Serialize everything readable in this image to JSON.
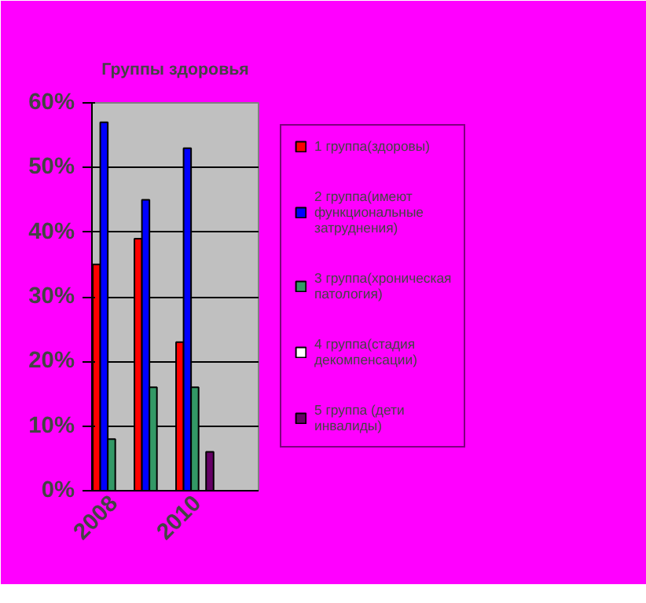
{
  "chart_data": {
    "type": "bar",
    "title": "Группы здоровья",
    "categories": [
      "2008",
      null,
      "2010",
      null
    ],
    "series": [
      {
        "name": "1 группа(здоровы)",
        "color": "#ff0000",
        "values": [
          35,
          39,
          23,
          null
        ]
      },
      {
        "name": "2 группа(имеют функциональные затруднения)",
        "color": "#0000ff",
        "values": [
          57,
          45,
          53,
          null
        ]
      },
      {
        "name": "3 группа(хроническая патология)",
        "color": "#339966",
        "values": [
          8,
          16,
          16,
          null
        ]
      },
      {
        "name": "4 группа(стадия декомпенсации)",
        "color": "#ffffff",
        "values": [
          null,
          null,
          null,
          null
        ]
      },
      {
        "name": "5 группа (дети инвалиды)",
        "color": "#660066",
        "values": [
          null,
          null,
          6,
          null
        ]
      }
    ],
    "ylim": [
      0,
      60
    ],
    "yticks": [
      {
        "value": 0,
        "label": "0%"
      },
      {
        "value": 10,
        "label": "10%"
      },
      {
        "value": 20,
        "label": "20%"
      },
      {
        "value": 30,
        "label": "30%"
      },
      {
        "value": 40,
        "label": "40%"
      },
      {
        "value": 50,
        "label": "50%"
      },
      {
        "value": 60,
        "label": "60%"
      }
    ],
    "grid": "y",
    "legend": "right"
  }
}
